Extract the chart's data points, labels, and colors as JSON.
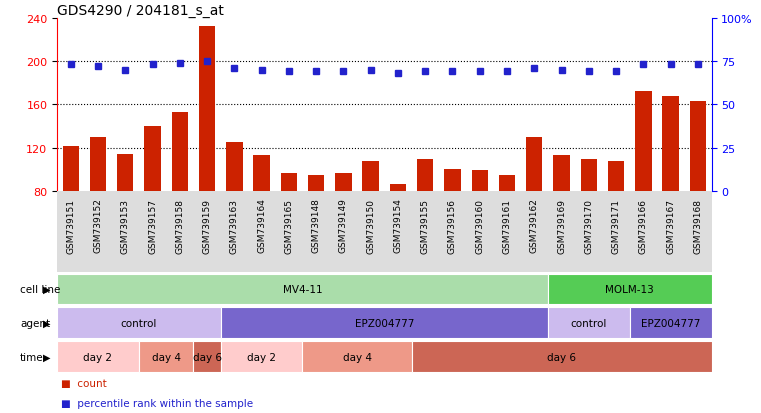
{
  "title": "GDS4290 / 204181_s_at",
  "samples": [
    "GSM739151",
    "GSM739152",
    "GSM739153",
    "GSM739157",
    "GSM739158",
    "GSM739159",
    "GSM739163",
    "GSM739164",
    "GSM739165",
    "GSM739148",
    "GSM739149",
    "GSM739150",
    "GSM739154",
    "GSM739155",
    "GSM739156",
    "GSM739160",
    "GSM739161",
    "GSM739162",
    "GSM739169",
    "GSM739170",
    "GSM739171",
    "GSM739166",
    "GSM739167",
    "GSM739168"
  ],
  "counts": [
    122,
    130,
    114,
    140,
    153,
    232,
    125,
    113,
    97,
    95,
    97,
    108,
    87,
    110,
    100,
    99,
    95,
    130,
    113,
    110,
    108,
    172,
    168,
    163
  ],
  "percentile_ranks": [
    73,
    72,
    70,
    73,
    74,
    75,
    71,
    70,
    69,
    69,
    69,
    70,
    68,
    69,
    69,
    69,
    69,
    71,
    70,
    69,
    69,
    73,
    73,
    73
  ],
  "ylim_left": [
    80,
    240
  ],
  "ylim_right": [
    0,
    100
  ],
  "yticks_left": [
    80,
    120,
    160,
    200,
    240
  ],
  "yticks_right": [
    0,
    25,
    50,
    75,
    100
  ],
  "yticklabels_right": [
    "0",
    "25",
    "50",
    "75",
    "100%"
  ],
  "bar_color": "#cc2200",
  "dot_color": "#2222cc",
  "bg_color": "#ffffff",
  "tick_label_bg": "#dddddd",
  "cell_line_data": [
    {
      "label": "MV4-11",
      "start": 0,
      "end": 18,
      "color": "#aaddaa"
    },
    {
      "label": "MOLM-13",
      "start": 18,
      "end": 24,
      "color": "#55cc55"
    }
  ],
  "agent_data": [
    {
      "label": "control",
      "start": 0,
      "end": 6,
      "color": "#ccbbee"
    },
    {
      "label": "EPZ004777",
      "start": 6,
      "end": 18,
      "color": "#7766cc"
    },
    {
      "label": "control",
      "start": 18,
      "end": 21,
      "color": "#ccbbee"
    },
    {
      "label": "EPZ004777",
      "start": 21,
      "end": 24,
      "color": "#7766cc"
    }
  ],
  "time_data": [
    {
      "label": "day 2",
      "start": 0,
      "end": 3,
      "color": "#ffcccc"
    },
    {
      "label": "day 4",
      "start": 3,
      "end": 5,
      "color": "#ee9988"
    },
    {
      "label": "day 6",
      "start": 5,
      "end": 6,
      "color": "#cc6655"
    },
    {
      "label": "day 2",
      "start": 6,
      "end": 9,
      "color": "#ffcccc"
    },
    {
      "label": "day 4",
      "start": 9,
      "end": 13,
      "color": "#ee9988"
    },
    {
      "label": "day 6",
      "start": 13,
      "end": 24,
      "color": "#cc6655"
    }
  ],
  "legend_items": [
    {
      "label": "count",
      "color": "#cc2200",
      "marker": "s"
    },
    {
      "label": "percentile rank within the sample",
      "color": "#2222cc",
      "marker": "s"
    }
  ],
  "row_labels": [
    "cell line",
    "agent",
    "time"
  ]
}
